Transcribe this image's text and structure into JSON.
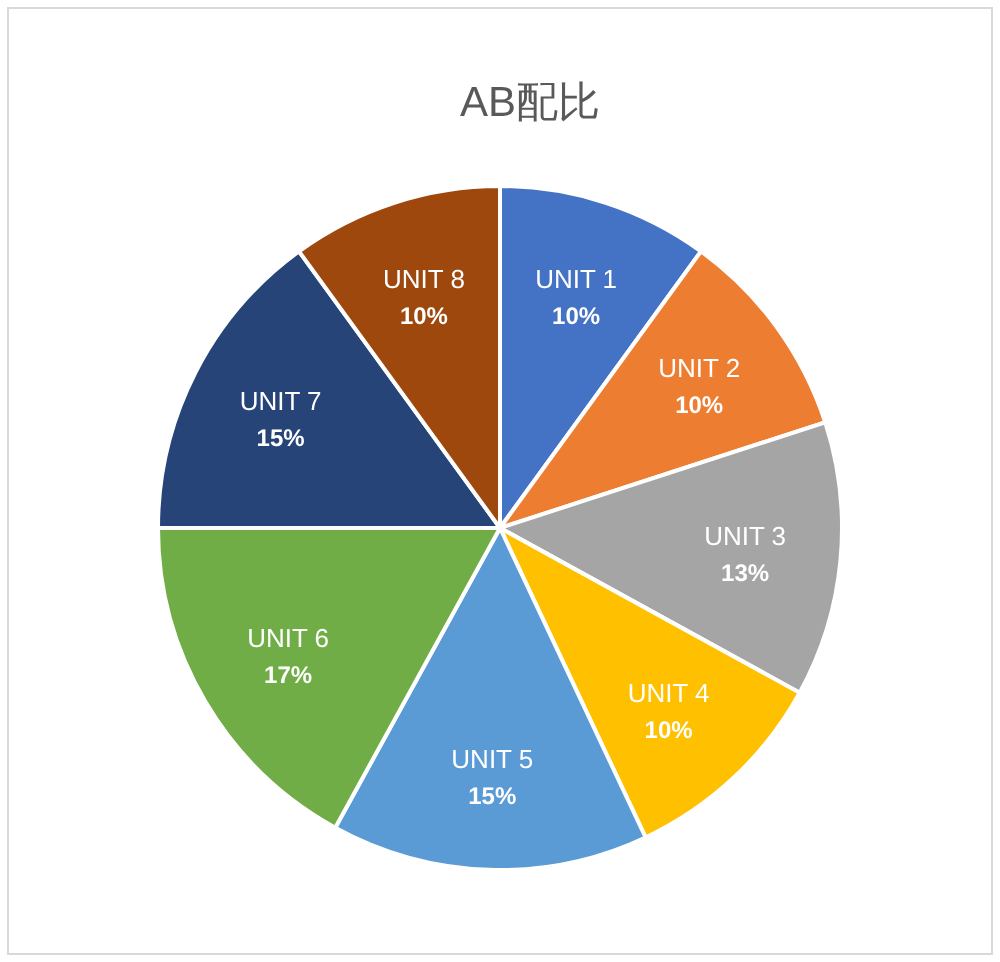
{
  "chart_data": {
    "type": "pie",
    "title": "AB配比",
    "categories": [
      "UNIT 1",
      "UNIT 2",
      "UNIT 3",
      "UNIT 4",
      "UNIT 5",
      "UNIT 6",
      "UNIT 7",
      "UNIT 8"
    ],
    "values": [
      10,
      10,
      13,
      10,
      15,
      17,
      15,
      10
    ],
    "colors": [
      "#4472c4",
      "#ed7d31",
      "#a5a5a5",
      "#ffc000",
      "#5b9bd5",
      "#70ad47",
      "#264478",
      "#9e480e"
    ],
    "value_labels": [
      "10%",
      "10%",
      "13%",
      "10%",
      "15%",
      "17%",
      "15%",
      "10%"
    ],
    "legend": false
  }
}
